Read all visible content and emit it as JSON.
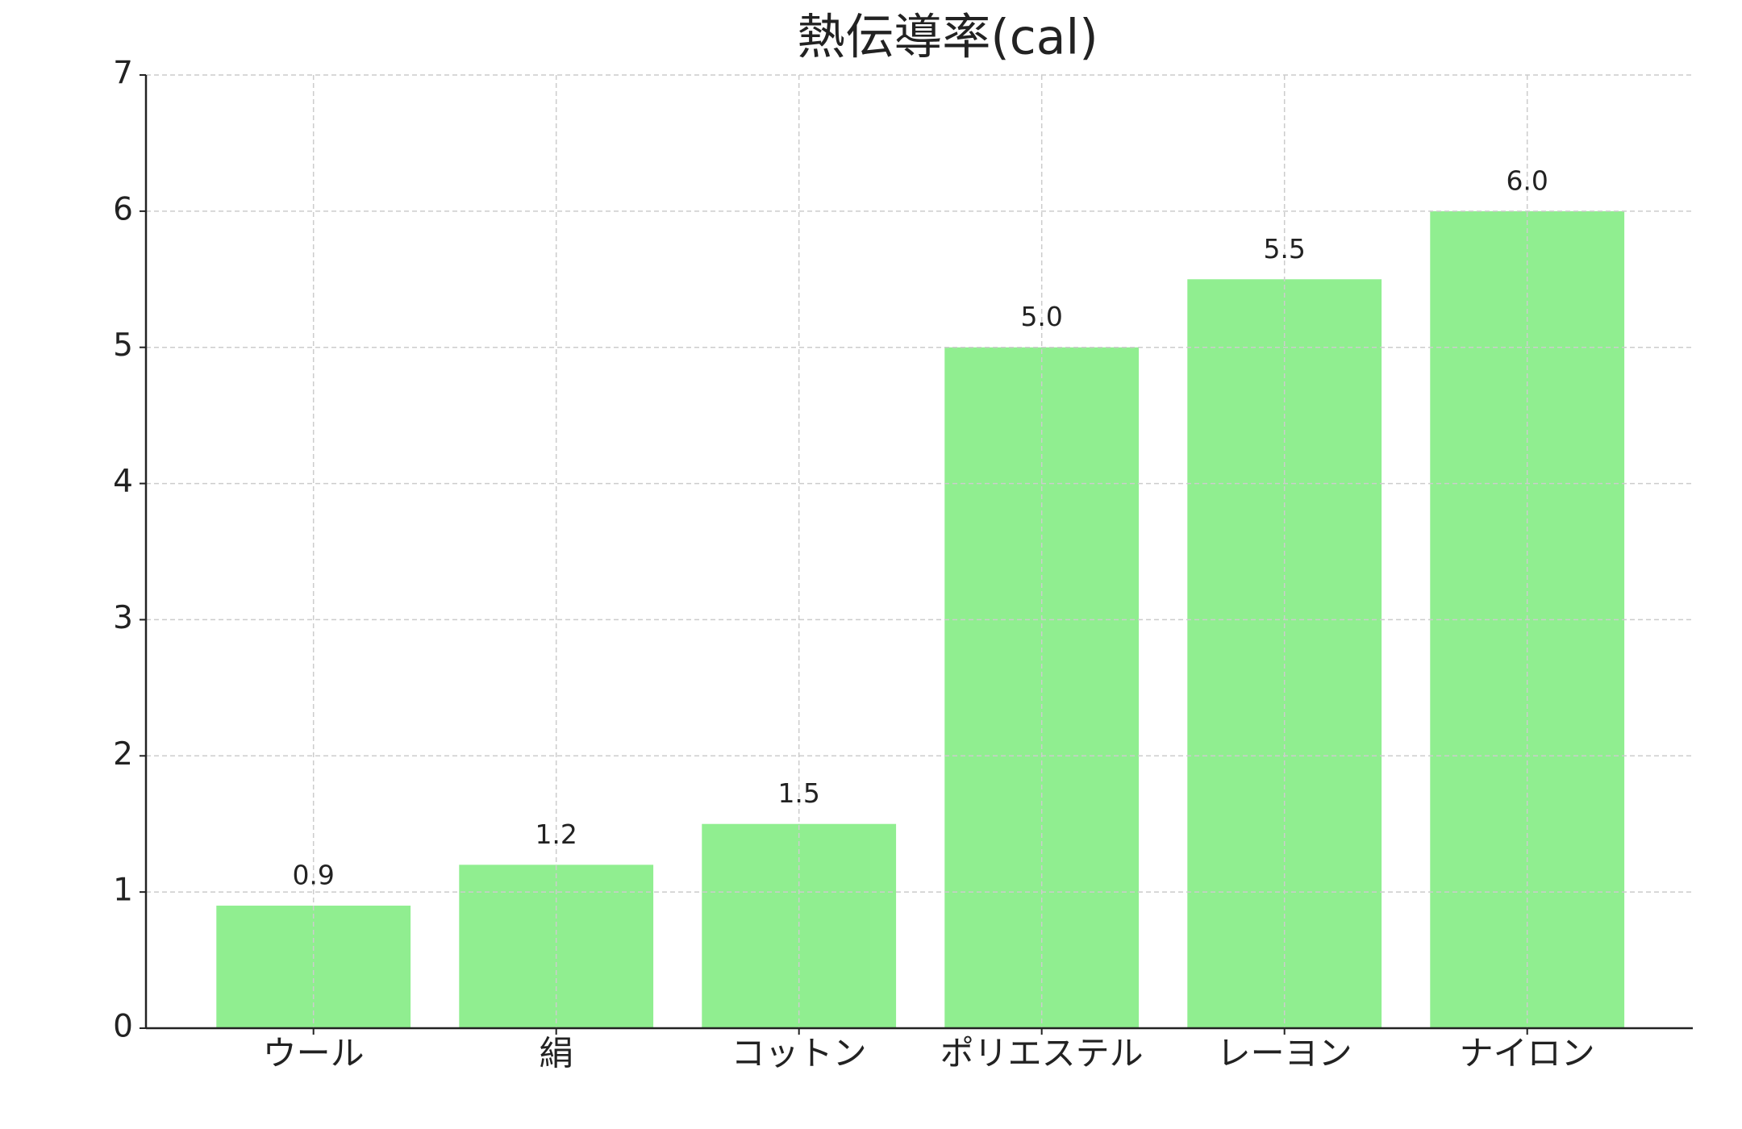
{
  "chart_data": {
    "type": "bar",
    "title": "熱伝導率(cal)",
    "categories": [
      "ウール",
      "絹",
      "コットン",
      "ポリエステル",
      "レーヨン",
      "ナイロン"
    ],
    "values": [
      0.9,
      1.2,
      1.5,
      5.0,
      5.5,
      6.0
    ],
    "value_labels": [
      "0.9",
      "1.2",
      "1.5",
      "5.0",
      "5.5",
      "6.0"
    ],
    "color": "#90ee90",
    "ylim": [
      0,
      7
    ],
    "yticks": [
      0,
      1,
      2,
      3,
      4,
      5,
      6,
      7
    ],
    "grid": true
  }
}
